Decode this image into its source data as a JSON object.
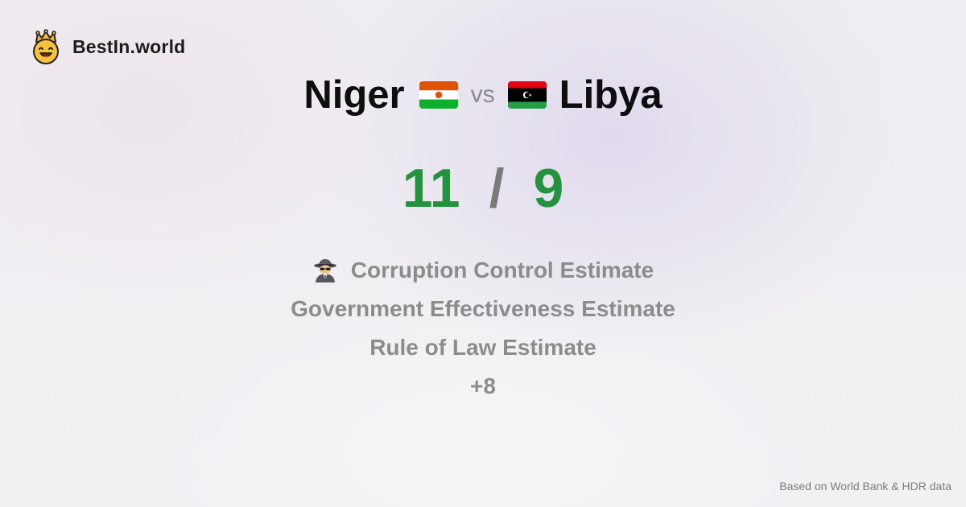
{
  "brand": {
    "name": "BestIn.world",
    "logo_icon": "crowned-smiley-icon"
  },
  "comparison": {
    "left_country": "Niger",
    "left_flag": "niger-flag-icon",
    "vs_label": "vs",
    "right_country": "Libya",
    "right_flag": "libya-flag-icon"
  },
  "scores": {
    "left": "11",
    "separator": "/",
    "right": "9",
    "color": "#25923f"
  },
  "metrics": {
    "icon": "spy-icon",
    "items": [
      "Corruption Control Estimate",
      "Government Effectiveness Estimate",
      "Rule of Law Estimate"
    ],
    "more": "+8"
  },
  "footer": {
    "source": "Based on World Bank & HDR data"
  }
}
